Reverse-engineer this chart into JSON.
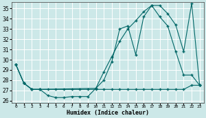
{
  "xlabel": "Humidex (Indice chaleur)",
  "bg_color": "#cce8e8",
  "grid_color": "#b0d0d0",
  "line_color": "#006666",
  "xlim": [
    -0.5,
    23.5
  ],
  "ylim": [
    25.8,
    35.6
  ],
  "yticks": [
    26,
    27,
    28,
    29,
    30,
    31,
    32,
    33,
    34,
    35
  ],
  "xticks": [
    0,
    1,
    2,
    3,
    4,
    5,
    6,
    7,
    8,
    9,
    10,
    11,
    12,
    13,
    14,
    15,
    16,
    17,
    18,
    19,
    20,
    21,
    22,
    23
  ],
  "line1_x": [
    0,
    1,
    2,
    3,
    4,
    5,
    6,
    7,
    8,
    9,
    10,
    11,
    12,
    13,
    14,
    15,
    16,
    17,
    18,
    19,
    20,
    21,
    22,
    23
  ],
  "line1_y": [
    29.5,
    27.7,
    27.1,
    27.1,
    27.1,
    27.1,
    27.1,
    27.1,
    27.1,
    27.1,
    27.1,
    27.1,
    27.1,
    27.1,
    27.1,
    27.1,
    27.1,
    27.1,
    27.1,
    27.1,
    27.1,
    27.1,
    27.5,
    27.5
  ],
  "line2_x": [
    0,
    1,
    2,
    3,
    4,
    5,
    6,
    7,
    8,
    9,
    10,
    11,
    12,
    13,
    14,
    15,
    16,
    17,
    18,
    19,
    20,
    21,
    22,
    23
  ],
  "line2_y": [
    29.5,
    27.7,
    27.1,
    27.1,
    26.5,
    26.3,
    26.3,
    26.4,
    26.4,
    26.4,
    27.2,
    28.0,
    29.8,
    33.0,
    33.3,
    30.5,
    34.2,
    35.3,
    34.2,
    33.3,
    30.8,
    28.5,
    28.5,
    27.5
  ],
  "line3_x": [
    0,
    1,
    2,
    3,
    10,
    11,
    12,
    13,
    14,
    15,
    16,
    17,
    18,
    19,
    20,
    21,
    22,
    23
  ],
  "line3_y": [
    29.5,
    27.7,
    27.1,
    27.1,
    27.2,
    28.8,
    30.3,
    31.8,
    33.0,
    33.8,
    34.7,
    35.3,
    35.3,
    34.5,
    33.4,
    30.8,
    35.5,
    27.5
  ]
}
